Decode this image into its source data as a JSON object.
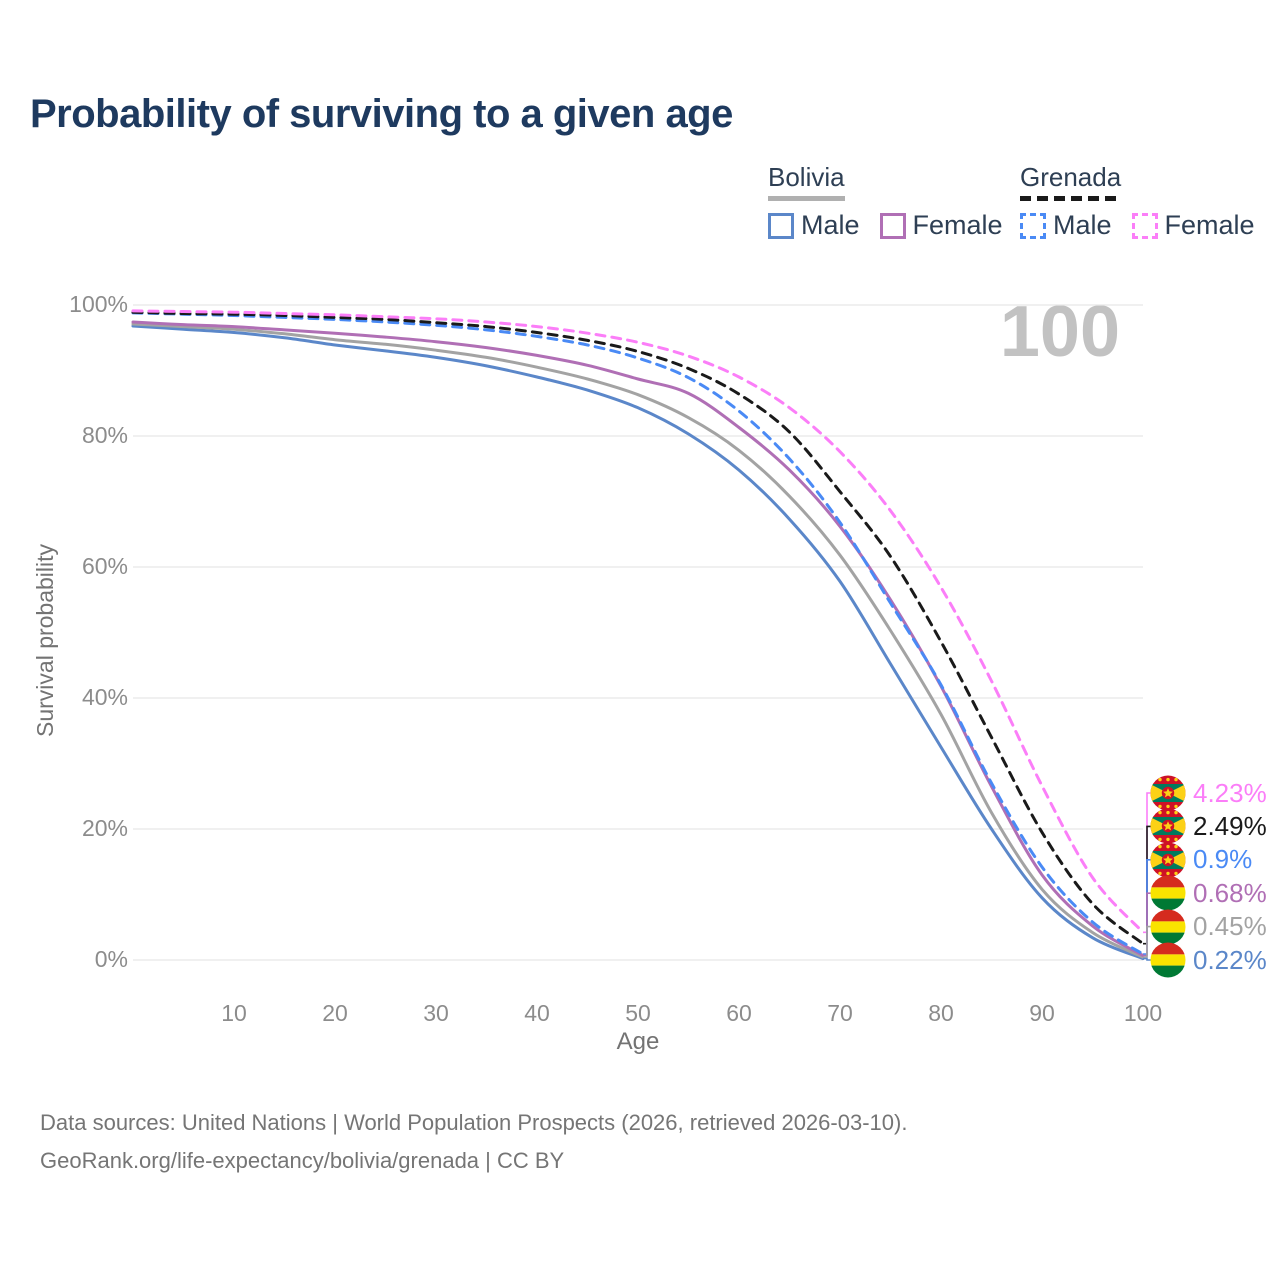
{
  "title": "Probability of surviving to a given age",
  "watermark_age": "100",
  "legend": {
    "groups": [
      {
        "id": "bolivia",
        "label": "Bolivia",
        "line_style": "solid",
        "line_color": "#b0b0b0",
        "items": [
          {
            "label": "Male",
            "color": "#5b87c9",
            "style": "solid"
          },
          {
            "label": "Female",
            "color": "#b06fb5",
            "style": "solid"
          }
        ]
      },
      {
        "id": "grenada",
        "label": "Grenada",
        "line_style": "dashed",
        "line_color": "#1a1a1a",
        "items": [
          {
            "label": "Male",
            "color": "#4a8af5",
            "style": "dashed"
          },
          {
            "label": "Female",
            "color": "#fb7ef8",
            "style": "dashed"
          }
        ]
      }
    ]
  },
  "chart_data": {
    "type": "line",
    "title": "Probability of surviving to a given age",
    "xlabel": "Age",
    "ylabel": "Survival probability",
    "xlim": [
      0,
      100
    ],
    "ylim": [
      0,
      100
    ],
    "xticks": [
      10,
      20,
      30,
      40,
      50,
      60,
      70,
      80,
      90,
      100
    ],
    "yticks": [
      0,
      20,
      40,
      60,
      80,
      100
    ],
    "ytick_suffix": "%",
    "grid": "horizontal",
    "gridline_color": "#e8e8e8",
    "x": [
      0,
      5,
      10,
      15,
      20,
      25,
      30,
      35,
      40,
      45,
      50,
      55,
      60,
      65,
      70,
      75,
      80,
      85,
      90,
      95,
      100
    ],
    "series": [
      {
        "id": "bolivia-male",
        "name": "Bolivia Male",
        "country": "bolivia",
        "color": "#5b87c9",
        "dash": false,
        "values": [
          96.8,
          96.3,
          95.8,
          95.0,
          93.9,
          93.0,
          92.0,
          90.7,
          89.0,
          87.0,
          84.3,
          80.3,
          74.8,
          67.3,
          57.8,
          45.2,
          32.5,
          20.0,
          9.5,
          3.4,
          0.22
        ]
      },
      {
        "id": "bolivia-all",
        "name": "Bolivia Both sexes",
        "country": "bolivia",
        "color": "#a3a3a3",
        "dash": false,
        "values": [
          97.1,
          96.7,
          96.3,
          95.6,
          94.7,
          94.0,
          93.1,
          92.0,
          90.5,
          88.7,
          86.3,
          82.8,
          77.8,
          70.8,
          61.8,
          50.3,
          37.5,
          22.5,
          10.8,
          4.2,
          0.45
        ]
      },
      {
        "id": "bolivia-female",
        "name": "Bolivia Female",
        "country": "bolivia",
        "color": "#b06fb5",
        "dash": false,
        "values": [
          97.4,
          97.0,
          96.7,
          96.2,
          95.7,
          95.1,
          94.4,
          93.5,
          92.3,
          90.8,
          88.7,
          86.5,
          81.3,
          74.8,
          66.2,
          55.0,
          41.8,
          26.5,
          13.0,
          5.2,
          0.68
        ]
      },
      {
        "id": "grenada-male",
        "name": "Grenada Male",
        "country": "grenada",
        "color": "#4a8af5",
        "dash": true,
        "values": [
          98.8,
          98.6,
          98.4,
          98.1,
          97.8,
          97.4,
          96.9,
          96.2,
          95.2,
          93.9,
          91.9,
          88.9,
          83.8,
          76.5,
          66.8,
          54.5,
          42.0,
          27.0,
          14.2,
          5.8,
          0.9
        ]
      },
      {
        "id": "grenada-all",
        "name": "Grenada Both sexes",
        "country": "grenada",
        "color": "#1a1a1a",
        "dash": true,
        "values": [
          98.9,
          98.7,
          98.6,
          98.4,
          98.1,
          97.8,
          97.3,
          96.7,
          95.8,
          94.6,
          92.9,
          90.3,
          86.4,
          80.6,
          71.5,
          61.6,
          48.6,
          34.0,
          19.5,
          8.6,
          2.49
        ]
      },
      {
        "id": "grenada-female",
        "name": "Grenada Female",
        "country": "grenada",
        "color": "#fb7ef8",
        "dash": true,
        "values": [
          99.1,
          99.0,
          98.9,
          98.7,
          98.5,
          98.2,
          97.9,
          97.4,
          96.7,
          95.7,
          94.3,
          92.2,
          89.0,
          84.3,
          77.6,
          68.6,
          56.9,
          42.6,
          26.6,
          12.6,
          4.23
        ]
      }
    ],
    "end_labels": [
      {
        "series": "grenada-female",
        "label": "4.23%"
      },
      {
        "series": "grenada-all",
        "label": "2.49%"
      },
      {
        "series": "grenada-male",
        "label": "0.9%"
      },
      {
        "series": "bolivia-female",
        "label": "0.68%"
      },
      {
        "series": "bolivia-all",
        "label": "0.45%"
      },
      {
        "series": "bolivia-male",
        "label": "0.22%"
      }
    ]
  },
  "flag_colors": {
    "bolivia": {
      "red": "#d52b1e",
      "yellow": "#f9e300",
      "green": "#007934"
    },
    "grenada": {
      "red": "#ce1126",
      "yellow": "#fcd116",
      "green": "#007a5e"
    }
  },
  "footer": {
    "line1": "Data sources: United Nations | World Population Prospects (2026, retrieved 2026-03-10).",
    "line2": "GeoRank.org/life-expectancy/bolivia/grenada | CC BY"
  }
}
